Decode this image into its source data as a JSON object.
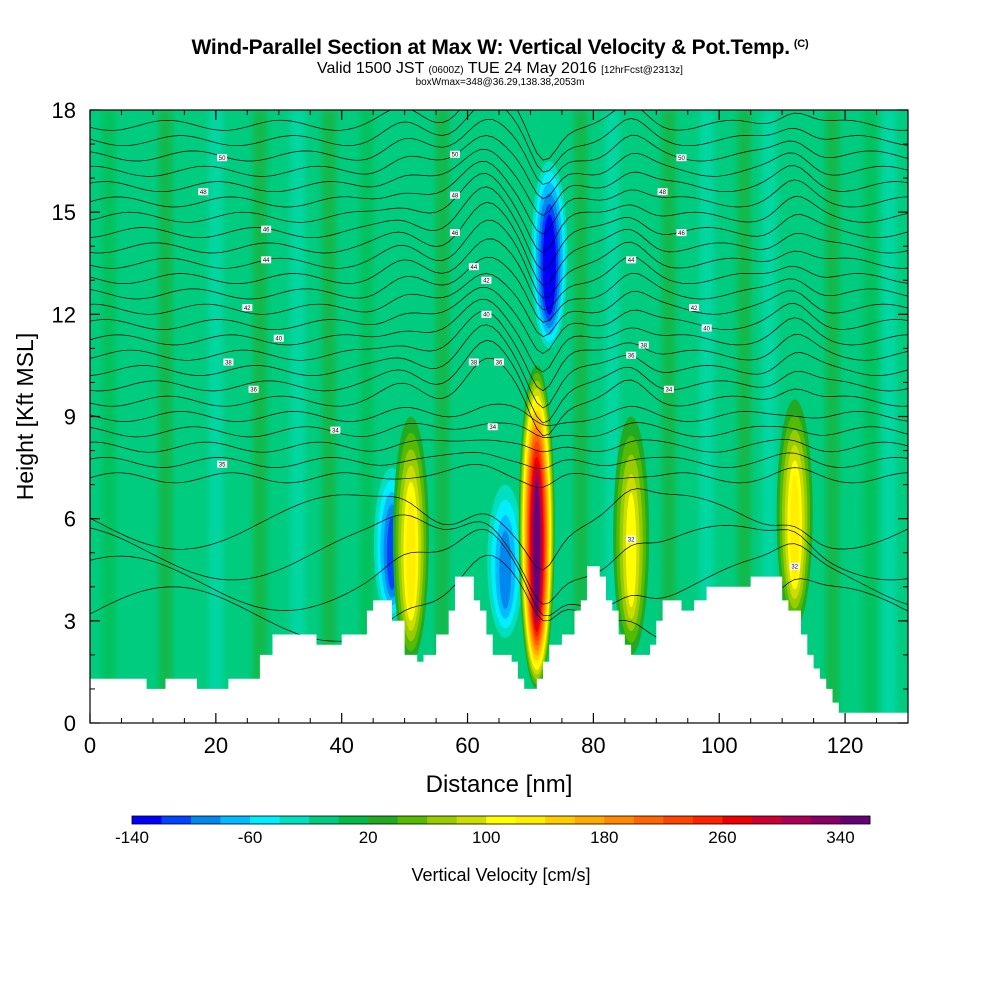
{
  "header": {
    "title": "Wind-Parallel Section at Max W: Vertical Velocity & Pot.Temp.",
    "copyright": "(C)",
    "valid_main": "Valid 1500 JST",
    "valid_utc": "(0600Z)",
    "valid_date": "TUE 24 May 2016",
    "forecast": "[12hrFcst@2313z]",
    "boxwmax": "boxWmax=348@36.29,138.38,2053m"
  },
  "chart_data": {
    "type": "heatmap",
    "title": "Wind-Parallel Section at Max W: Vertical Velocity & Pot.Temp.",
    "xlabel": "Distance [nm]",
    "ylabel": "Height [Kft MSL]",
    "xlim": [
      0,
      130
    ],
    "ylim": [
      0,
      18
    ],
    "x_ticks": [
      0,
      20,
      40,
      60,
      80,
      100,
      120
    ],
    "y_ticks": [
      0,
      3,
      6,
      9,
      12,
      15,
      18
    ],
    "colorbar": {
      "label": "Vertical Velocity [cm/s]",
      "levels": [
        -140,
        -120,
        -100,
        -80,
        -60,
        -40,
        -20,
        0,
        20,
        40,
        60,
        80,
        100,
        120,
        140,
        160,
        180,
        200,
        220,
        240,
        260,
        280,
        300,
        320,
        340,
        360
      ],
      "tick_labels": [
        "-140",
        "-60",
        "20",
        "100",
        "180",
        "260",
        "340"
      ],
      "tick_values": [
        -140,
        -60,
        20,
        100,
        180,
        260,
        340
      ],
      "colors": [
        "#0000ff",
        "#0044ff",
        "#0088ee",
        "#00bbff",
        "#00eeff",
        "#00e0c0",
        "#00cc80",
        "#00bb44",
        "#22aa22",
        "#55bb00",
        "#99cc00",
        "#ccdd00",
        "#ffff00",
        "#ffee00",
        "#ffcc00",
        "#ffaa00",
        "#ff8800",
        "#ff6600",
        "#ff4400",
        "#ff2200",
        "#ee0000",
        "#cc0033",
        "#aa0055",
        "#880066",
        "#660077"
      ]
    },
    "updraft_cores": [
      {
        "x": 51,
        "z_bottom": 1.8,
        "z_top": 9.0,
        "peak_w": 120
      },
      {
        "x": 71,
        "z_bottom": 1.0,
        "z_top": 10.5,
        "peak_w": 340
      },
      {
        "x": 86,
        "z_bottom": 2.0,
        "z_top": 9.0,
        "peak_w": 100
      },
      {
        "x": 112,
        "z_bottom": 2.8,
        "z_top": 9.5,
        "peak_w": 120
      }
    ],
    "downdraft_cores": [
      {
        "x": 48,
        "z_bottom": 3.0,
        "z_top": 7.5,
        "peak_w": -100
      },
      {
        "x": 66,
        "z_bottom": 2.5,
        "z_top": 7.0,
        "peak_w": -80
      },
      {
        "x": 73,
        "z_bottom": 11.0,
        "z_top": 16.5,
        "peak_w": -140
      }
    ],
    "terrain": [
      [
        0,
        1.3
      ],
      [
        9,
        1.3
      ],
      [
        9,
        1.0
      ],
      [
        12,
        1.0
      ],
      [
        12,
        1.3
      ],
      [
        17,
        1.3
      ],
      [
        17,
        1.0
      ],
      [
        22,
        1.0
      ],
      [
        22,
        1.3
      ],
      [
        27,
        1.3
      ],
      [
        27,
        2.0
      ],
      [
        29,
        2.0
      ],
      [
        29,
        2.6
      ],
      [
        36,
        2.6
      ],
      [
        36,
        2.3
      ],
      [
        40,
        2.3
      ],
      [
        40,
        2.6
      ],
      [
        44,
        2.6
      ],
      [
        44,
        3.3
      ],
      [
        45,
        3.3
      ],
      [
        45,
        3.6
      ],
      [
        48,
        3.6
      ],
      [
        48,
        3.0
      ],
      [
        50,
        3.0
      ],
      [
        50,
        2.0
      ],
      [
        52,
        2.0
      ],
      [
        52,
        1.8
      ],
      [
        53,
        1.8
      ],
      [
        53,
        2.0
      ],
      [
        55,
        2.0
      ],
      [
        55,
        2.6
      ],
      [
        57,
        2.6
      ],
      [
        57,
        3.3
      ],
      [
        58,
        3.3
      ],
      [
        58,
        4.3
      ],
      [
        61,
        4.3
      ],
      [
        61,
        3.6
      ],
      [
        62,
        3.6
      ],
      [
        62,
        3.3
      ],
      [
        63,
        3.3
      ],
      [
        63,
        2.6
      ],
      [
        64,
        2.6
      ],
      [
        64,
        2.0
      ],
      [
        67,
        2.0
      ],
      [
        67,
        1.8
      ],
      [
        68,
        1.8
      ],
      [
        68,
        1.3
      ],
      [
        69,
        1.3
      ],
      [
        69,
        1.0
      ],
      [
        71,
        1.0
      ],
      [
        71,
        1.3
      ],
      [
        72,
        1.3
      ],
      [
        72,
        1.8
      ],
      [
        73,
        1.8
      ],
      [
        73,
        2.3
      ],
      [
        75,
        2.3
      ],
      [
        75,
        2.6
      ],
      [
        77,
        2.6
      ],
      [
        77,
        3.3
      ],
      [
        78,
        3.3
      ],
      [
        78,
        3.6
      ],
      [
        79,
        3.6
      ],
      [
        79,
        4.6
      ],
      [
        81,
        4.6
      ],
      [
        81,
        4.3
      ],
      [
        82,
        4.3
      ],
      [
        82,
        3.6
      ],
      [
        83,
        3.6
      ],
      [
        83,
        3.3
      ],
      [
        84,
        3.3
      ],
      [
        84,
        2.6
      ],
      [
        85,
        2.6
      ],
      [
        85,
        2.3
      ],
      [
        86,
        2.3
      ],
      [
        86,
        2.0
      ],
      [
        89,
        2.0
      ],
      [
        89,
        2.3
      ],
      [
        90,
        2.3
      ],
      [
        90,
        3.0
      ],
      [
        91,
        3.0
      ],
      [
        91,
        3.6
      ],
      [
        94,
        3.6
      ],
      [
        94,
        3.3
      ],
      [
        96,
        3.3
      ],
      [
        96,
        3.6
      ],
      [
        98,
        3.6
      ],
      [
        98,
        4.0
      ],
      [
        105,
        4.0
      ],
      [
        105,
        4.3
      ],
      [
        110,
        4.3
      ],
      [
        110,
        3.6
      ],
      [
        111,
        3.6
      ],
      [
        111,
        3.3
      ],
      [
        113,
        3.3
      ],
      [
        113,
        2.6
      ],
      [
        114,
        2.6
      ],
      [
        114,
        2.0
      ],
      [
        115,
        2.0
      ],
      [
        115,
        1.6
      ],
      [
        116,
        1.6
      ],
      [
        116,
        1.3
      ],
      [
        117,
        1.3
      ],
      [
        117,
        1.0
      ],
      [
        118,
        1.0
      ],
      [
        118,
        0.6
      ],
      [
        119,
        0.6
      ],
      [
        119,
        0.3
      ],
      [
        130,
        0.3
      ]
    ],
    "isentrope_labels": [
      {
        "text": "50",
        "x": 21,
        "y": 16.6
      },
      {
        "text": "48",
        "x": 18,
        "y": 15.6
      },
      {
        "text": "46",
        "x": 28,
        "y": 14.5
      },
      {
        "text": "44",
        "x": 28,
        "y": 13.6
      },
      {
        "text": "42",
        "x": 25,
        "y": 12.2
      },
      {
        "text": "40",
        "x": 30,
        "y": 11.3
      },
      {
        "text": "38",
        "x": 22,
        "y": 10.6
      },
      {
        "text": "36",
        "x": 26,
        "y": 9.8
      },
      {
        "text": "34",
        "x": 39,
        "y": 8.6
      },
      {
        "text": "35",
        "x": 21,
        "y": 7.6
      },
      {
        "text": "50",
        "x": 58,
        "y": 16.7
      },
      {
        "text": "48",
        "x": 58,
        "y": 15.5
      },
      {
        "text": "46",
        "x": 58,
        "y": 14.4
      },
      {
        "text": "44",
        "x": 61,
        "y": 13.4
      },
      {
        "text": "42",
        "x": 63,
        "y": 13.0
      },
      {
        "text": "40",
        "x": 63,
        "y": 12.0
      },
      {
        "text": "38",
        "x": 61,
        "y": 10.6
      },
      {
        "text": "36",
        "x": 65,
        "y": 10.6
      },
      {
        "text": "34",
        "x": 64,
        "y": 8.7
      },
      {
        "text": "50",
        "x": 94,
        "y": 16.6
      },
      {
        "text": "48",
        "x": 91,
        "y": 15.6
      },
      {
        "text": "46",
        "x": 94,
        "y": 14.4
      },
      {
        "text": "44",
        "x": 86,
        "y": 13.6
      },
      {
        "text": "42",
        "x": 96,
        "y": 12.2
      },
      {
        "text": "40",
        "x": 98,
        "y": 11.6
      },
      {
        "text": "38",
        "x": 88,
        "y": 11.1
      },
      {
        "text": "36",
        "x": 86,
        "y": 10.8
      },
      {
        "text": "34",
        "x": 92,
        "y": 9.8
      },
      {
        "text": "32",
        "x": 86,
        "y": 5.4
      },
      {
        "text": "32",
        "x": 112,
        "y": 4.6
      }
    ]
  }
}
